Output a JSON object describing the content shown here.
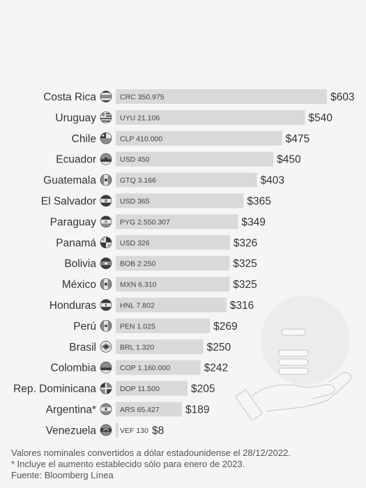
{
  "chart_data": {
    "type": "bar",
    "orientation": "horizontal",
    "categories": [
      "Costa Rica",
      "Uruguay",
      "Chile",
      "Ecuador",
      "Guatemala",
      "El Salvador",
      "Paraguay",
      "Panamá",
      "Bolivia",
      "México",
      "Honduras",
      "Perú",
      "Brasil",
      "Colombia",
      "Rep. Dominicana",
      "Argentina*",
      "Venezuela"
    ],
    "local_amounts": [
      "CRC 350.975",
      "UYU 21.106",
      "CLP 410.000",
      "USD 450",
      "GTQ 3.166",
      "USD 365",
      "PYG 2.550.307",
      "USD 326",
      "BOB 2.250",
      "MXN 6.310",
      "HNL 7.802",
      "PEN 1.025",
      "BRL 1.320",
      "COP 1.160.000",
      "DOP 11.500",
      "ARS 65.427",
      "VEF 130"
    ],
    "values": [
      603,
      540,
      475,
      450,
      403,
      365,
      349,
      326,
      325,
      325,
      316,
      269,
      250,
      242,
      205,
      189,
      8
    ],
    "value_labels": [
      "$603",
      "$540",
      "$475",
      "$450",
      "$403",
      "$365",
      "$349",
      "$326",
      "$325",
      "$325",
      "$316",
      "$269",
      "$250",
      "$242",
      "$205",
      "$189",
      "$8"
    ],
    "flag_icons": [
      "costa-rica-flag-icon",
      "uruguay-flag-icon",
      "chile-flag-icon",
      "ecuador-flag-icon",
      "guatemala-flag-icon",
      "el-salvador-flag-icon",
      "paraguay-flag-icon",
      "panama-flag-icon",
      "bolivia-flag-icon",
      "mexico-flag-icon",
      "honduras-flag-icon",
      "peru-flag-icon",
      "brasil-flag-icon",
      "colombia-flag-icon",
      "dominican-republic-flag-icon",
      "argentina-flag-icon",
      "venezuela-flag-icon"
    ],
    "xlim": [
      0,
      603
    ],
    "grid": false,
    "legend": "none",
    "bar_color": "#d9d9d9",
    "decoration_icon": "hand-holding-coins-icon"
  },
  "footer": {
    "note1": "Valores nominales convertidos a dólar estadounidense el 28/12/2022.",
    "note2": "* Incluye el aumento establecido sólo para enero de 2023.",
    "source": "Fuente: Bloomberg Línea"
  }
}
